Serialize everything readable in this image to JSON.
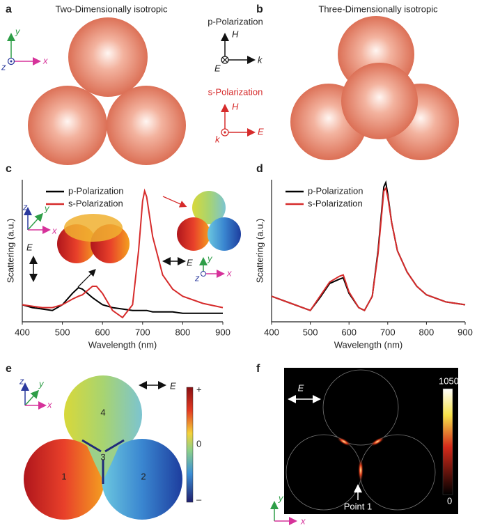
{
  "panels": {
    "a": {
      "label": "a",
      "title": "Two-Dimensionally isotropic",
      "axis_x": "x",
      "axis_y": "y",
      "axis_z": "z"
    },
    "mid": {
      "p_title": "p-Polarization",
      "p_h": "H",
      "p_e": "E",
      "p_k": "k",
      "s_title": "s-Polarization",
      "s_h": "H",
      "s_e": "E",
      "s_k": "k"
    },
    "b": {
      "label": "b",
      "title": "Three-Dimensionally isotropic"
    },
    "c": {
      "label": "c",
      "left_z": "z",
      "left_y": "y",
      "left_x": "x",
      "left_e": "E",
      "right_e": "E",
      "right_y": "y",
      "right_z": "z",
      "right_x": "x"
    },
    "d": {
      "label": "d"
    },
    "e": {
      "label": "e",
      "axis_z": "z",
      "axis_y": "y",
      "axis_x": "x",
      "field": "E",
      "sphere_1": "1",
      "sphere_2": "2",
      "sphere_3": "3",
      "sphere_4": "4",
      "cb_top": "+",
      "cb_mid": "0",
      "cb_bottom": "–"
    },
    "f": {
      "label": "f",
      "field": "E",
      "cb_top": "1050",
      "cb_bottom": "0",
      "point": "Point 1",
      "axis_y": "y",
      "axis_x": "x"
    }
  },
  "chart_data": [
    {
      "type": "line",
      "xlabel": "Wavelength (nm)",
      "ylabel": "Scattering (a.u.)",
      "x": [
        400,
        425,
        450,
        475,
        500,
        525,
        540,
        550,
        575,
        585,
        600,
        625,
        650,
        675,
        690,
        700,
        705,
        710,
        725,
        750,
        775,
        800,
        850,
        900
      ],
      "series": [
        {
          "name": "p-Polarization",
          "color": "#000000",
          "values": [
            0.12,
            0.1,
            0.09,
            0.08,
            0.12,
            0.2,
            0.24,
            0.23,
            0.17,
            0.15,
            0.12,
            0.1,
            0.09,
            0.08,
            0.08,
            0.08,
            0.08,
            0.08,
            0.07,
            0.07,
            0.07,
            0.06,
            0.06,
            0.06
          ]
        },
        {
          "name": "s-Polarization",
          "color": "#d62b2b",
          "values": [
            0.12,
            0.11,
            0.1,
            0.1,
            0.12,
            0.16,
            0.18,
            0.19,
            0.25,
            0.25,
            0.2,
            0.08,
            0.03,
            0.12,
            0.5,
            0.85,
            0.92,
            0.88,
            0.6,
            0.33,
            0.23,
            0.18,
            0.13,
            0.1
          ]
        }
      ],
      "xlim": [
        400,
        900
      ],
      "ylim": [
        0,
        1
      ],
      "xticks": [
        400,
        500,
        600,
        700,
        800,
        900
      ]
    },
    {
      "type": "line",
      "xlabel": "Wavelength (nm)",
      "ylabel": "Scattering (a.u.)",
      "x": [
        400,
        450,
        500,
        525,
        550,
        575,
        585,
        600,
        625,
        640,
        660,
        675,
        690,
        695,
        700,
        710,
        725,
        750,
        775,
        800,
        850,
        900
      ],
      "series": [
        {
          "name": "p-Polarization",
          "color": "#000000",
          "values": [
            0.18,
            0.13,
            0.08,
            0.17,
            0.27,
            0.3,
            0.31,
            0.2,
            0.1,
            0.08,
            0.18,
            0.5,
            0.95,
            0.98,
            0.9,
            0.7,
            0.5,
            0.35,
            0.25,
            0.19,
            0.14,
            0.12
          ]
        },
        {
          "name": "s-Polarization",
          "color": "#d62b2b",
          "values": [
            0.18,
            0.13,
            0.08,
            0.18,
            0.28,
            0.32,
            0.33,
            0.21,
            0.1,
            0.08,
            0.18,
            0.48,
            0.92,
            0.94,
            0.88,
            0.7,
            0.5,
            0.35,
            0.25,
            0.19,
            0.14,
            0.12
          ]
        }
      ],
      "xlim": [
        400,
        900
      ],
      "ylim": [
        0,
        1
      ],
      "xticks": [
        400,
        500,
        600,
        700,
        800,
        900
      ]
    }
  ]
}
